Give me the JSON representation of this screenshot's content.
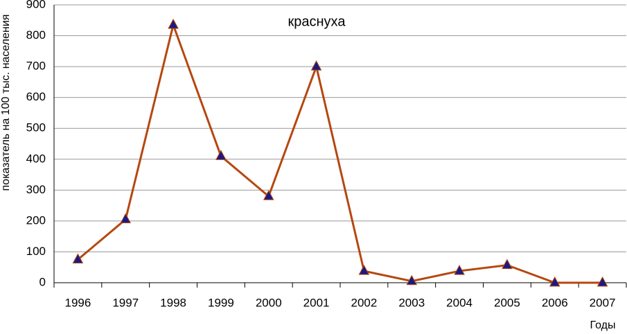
{
  "chart_data": {
    "type": "line",
    "title": "краснуха",
    "y_label": "показатель на 100 тыс. населения",
    "x_label": "Годы",
    "categories": [
      "1996",
      "1997",
      "1998",
      "1999",
      "2000",
      "2001",
      "2002",
      "2003",
      "2004",
      "2005",
      "2006",
      "2007"
    ],
    "values": [
      75,
      205,
      835,
      410,
      280,
      700,
      38,
      5,
      38,
      57,
      0,
      0
    ],
    "color": "#b5470f",
    "marker_color": "#1a1a80",
    "ylim": [
      0,
      900
    ],
    "yticks": [
      0,
      100,
      200,
      300,
      400,
      500,
      600,
      700,
      800,
      900
    ],
    "grid": true
  }
}
